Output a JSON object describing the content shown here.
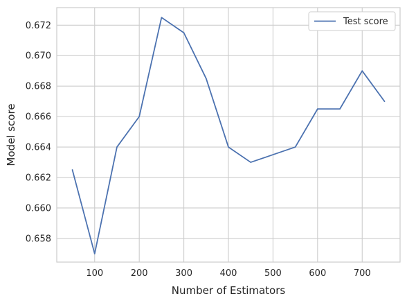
{
  "chart_data": {
    "type": "line",
    "title": "",
    "xlabel": "Number of Estimators",
    "ylabel": "Model score",
    "xlim": [
      15,
      785
    ],
    "ylim": [
      0.65645,
      0.67315
    ],
    "xticks": [
      100,
      200,
      300,
      400,
      500,
      600,
      700
    ],
    "xtick_labels": [
      "100",
      "200",
      "300",
      "400",
      "500",
      "600",
      "700"
    ],
    "yticks": [
      0.658,
      0.66,
      0.662,
      0.664,
      0.666,
      0.668,
      0.67,
      0.672
    ],
    "ytick_labels": [
      "0.658",
      "0.660",
      "0.662",
      "0.664",
      "0.666",
      "0.668",
      "0.670",
      "0.672"
    ],
    "grid": true,
    "legend_position": "top-right",
    "series": [
      {
        "name": "Test score",
        "color": "#4c72b0",
        "x": [
          50,
          100,
          150,
          200,
          250,
          300,
          350,
          400,
          450,
          500,
          550,
          600,
          650,
          700,
          750
        ],
        "y": [
          0.6625,
          0.657,
          0.664,
          0.666,
          0.6725,
          0.6715,
          0.6685,
          0.664,
          0.663,
          0.6635,
          0.664,
          0.6665,
          0.6665,
          0.669,
          0.667
        ]
      }
    ]
  }
}
